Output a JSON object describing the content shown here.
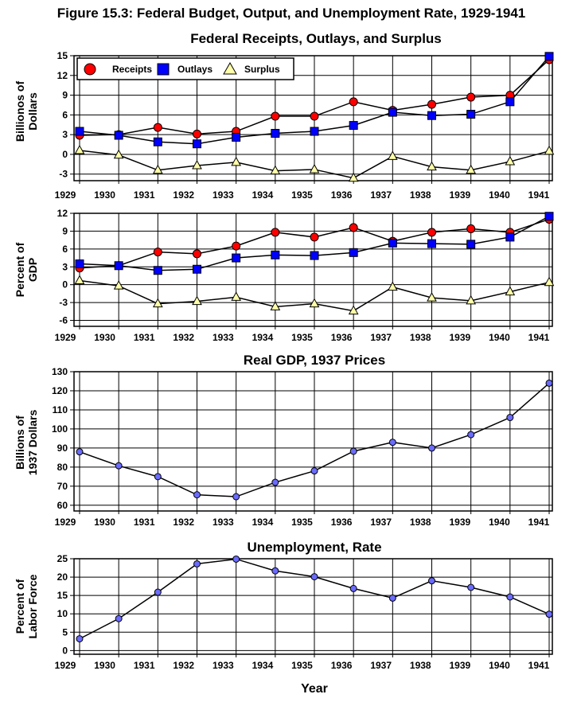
{
  "figure_title": "Figure 15.3: Federal Budget, Output, and Unemployment Rate, 1929-1941",
  "x_axis_label": "Year",
  "colors": {
    "receipts": "#ff0000",
    "outlays": "#0000ff",
    "surplus": "#ffffaa",
    "line": "#000000",
    "dot": "#6b6bff"
  },
  "chart_data": [
    {
      "type": "line",
      "title": "Federal Receipts, Outlays, and Surplus",
      "ylabel": [
        "Billionos of",
        "Dollars"
      ],
      "xlabel": "",
      "ylim": [
        -4,
        15
      ],
      "yticks": [
        15,
        12,
        9,
        6,
        3,
        0,
        -3
      ],
      "x": [
        1929,
        1930,
        1931,
        1932,
        1933,
        1934,
        1935,
        1936,
        1937,
        1938,
        1939,
        1940,
        1941
      ],
      "grid": true,
      "legend": "top-left",
      "series": [
        {
          "name": "Receipts",
          "marker": "circle",
          "color": "#ff0000",
          "values": [
            2.9,
            3.0,
            4.1,
            3.1,
            3.5,
            5.8,
            5.8,
            8.0,
            6.7,
            7.6,
            8.7,
            9.0,
            14.4
          ]
        },
        {
          "name": "Outlays",
          "marker": "square",
          "color": "#0000ff",
          "values": [
            3.5,
            2.9,
            1.9,
            1.6,
            2.6,
            3.2,
            3.5,
            4.4,
            6.4,
            5.9,
            6.1,
            8.0,
            14.9
          ]
        },
        {
          "name": "Surplus",
          "marker": "triangle",
          "color": "#ffffaa",
          "values": [
            0.6,
            -0.1,
            -2.4,
            -1.7,
            -1.2,
            -2.5,
            -2.3,
            -3.6,
            -0.3,
            -1.9,
            -2.4,
            -1.1,
            0.5
          ]
        }
      ]
    },
    {
      "type": "line",
      "title": "",
      "ylabel": [
        "Percent of",
        "GDP"
      ],
      "xlabel": "",
      "ylim": [
        -7,
        12
      ],
      "yticks": [
        12,
        9,
        6,
        3,
        0,
        -3,
        -6
      ],
      "x": [
        1929,
        1930,
        1931,
        1932,
        1933,
        1934,
        1935,
        1936,
        1937,
        1938,
        1939,
        1940,
        1941
      ],
      "grid": true,
      "series": [
        {
          "name": "Receipts",
          "marker": "circle",
          "color": "#ff0000",
          "values": [
            2.8,
            3.2,
            5.5,
            5.2,
            6.5,
            8.8,
            8.0,
            9.6,
            7.3,
            8.8,
            9.4,
            8.8,
            11.0
          ]
        },
        {
          "name": "Outlays",
          "marker": "square",
          "color": "#0000ff",
          "values": [
            3.5,
            3.2,
            2.4,
            2.6,
            4.5,
            5.0,
            4.9,
            5.4,
            7.0,
            6.9,
            6.8,
            8.0,
            11.5
          ]
        },
        {
          "name": "Surplus",
          "marker": "triangle",
          "color": "#ffffaa",
          "values": [
            0.7,
            -0.2,
            -3.2,
            -2.8,
            -2.1,
            -3.7,
            -3.2,
            -4.4,
            -0.4,
            -2.2,
            -2.7,
            -1.2,
            0.4
          ]
        }
      ]
    },
    {
      "type": "line",
      "title": "Real GDP, 1937 Prices",
      "ylabel": [
        "Billions of",
        "1937 Dollars"
      ],
      "xlabel": "",
      "ylim": [
        57,
        130
      ],
      "yticks": [
        130,
        120,
        110,
        100,
        90,
        80,
        70,
        60
      ],
      "x": [
        1929,
        1930,
        1931,
        1932,
        1933,
        1934,
        1935,
        1936,
        1937,
        1938,
        1939,
        1940,
        1941
      ],
      "grid": true,
      "series": [
        {
          "marker": "dot",
          "color": "#6b6bff",
          "values": [
            88,
            80.7,
            75,
            65.5,
            64.5,
            72,
            78,
            88.3,
            93,
            90,
            97,
            106,
            124
          ]
        }
      ]
    },
    {
      "type": "line",
      "title": "Unemployment, Rate",
      "ylabel": [
        "Percent of",
        "Labor Force"
      ],
      "xlabel": "Year",
      "ylim": [
        -1,
        25
      ],
      "yticks": [
        25,
        20,
        15,
        10,
        5,
        0
      ],
      "x": [
        1929,
        1930,
        1931,
        1932,
        1933,
        1934,
        1935,
        1936,
        1937,
        1938,
        1939,
        1940,
        1941
      ],
      "grid": true,
      "series": [
        {
          "marker": "dot",
          "color": "#6b6bff",
          "values": [
            3.2,
            8.7,
            15.9,
            23.6,
            24.9,
            21.7,
            20.1,
            16.9,
            14.3,
            19.0,
            17.2,
            14.6,
            9.9
          ]
        }
      ]
    }
  ]
}
